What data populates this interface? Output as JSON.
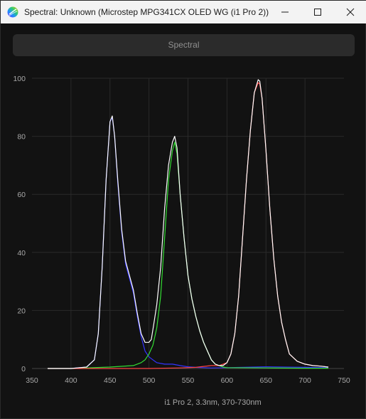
{
  "window": {
    "title": "Spectral: Unknown (Microstep MPG341CX OLED WG (i1 Pro 2))",
    "controls": [
      "minimize-icon",
      "maximize-icon",
      "close-icon"
    ]
  },
  "toolbar": {
    "spectral_label": "Spectral"
  },
  "chart_data": {
    "type": "line",
    "xlabel": "i1 Pro 2, 3.3nm, 370-730nm",
    "ylabel": "",
    "xlim": [
      350,
      750
    ],
    "ylim": [
      0,
      100
    ],
    "x_ticks": [
      350,
      400,
      450,
      500,
      550,
      600,
      650,
      700,
      750
    ],
    "y_ticks": [
      0,
      20,
      40,
      60,
      80,
      100
    ],
    "grid": true,
    "series": [
      {
        "color": "#ffffff",
        "x": [
          370,
          400,
          420,
          430,
          435,
          440,
          445,
          450,
          453,
          456,
          460,
          465,
          470,
          475,
          480,
          485,
          490,
          495,
          500,
          503,
          506,
          510,
          515,
          520,
          525,
          530,
          533,
          536,
          540,
          545,
          550,
          555,
          560,
          565,
          570,
          575,
          580,
          585,
          590,
          595,
          600,
          605,
          610,
          615,
          620,
          625,
          630,
          635,
          640,
          642,
          645,
          650,
          655,
          660,
          665,
          670,
          675,
          680,
          690,
          700,
          710,
          720,
          730
        ],
        "y": [
          0,
          0,
          0.5,
          3,
          12,
          35,
          65,
          85,
          87,
          80,
          65,
          48,
          37,
          32,
          27,
          19,
          12,
          9,
          9,
          10,
          15,
          22,
          35,
          55,
          70,
          78,
          80,
          76,
          60,
          45,
          32,
          24,
          18,
          13,
          9,
          6,
          3,
          1.5,
          1,
          1,
          2,
          5,
          12,
          25,
          45,
          65,
          82,
          95,
          99.5,
          99,
          93,
          75,
          55,
          38,
          25,
          16,
          10,
          5,
          2.5,
          1.5,
          1,
          0.8,
          0.5
        ]
      },
      {
        "color": "#3333ff",
        "x": [
          370,
          400,
          420,
          430,
          435,
          440,
          445,
          450,
          453,
          456,
          460,
          465,
          470,
          475,
          480,
          485,
          490,
          495,
          500,
          505,
          510,
          520,
          530,
          540,
          550,
          560,
          570,
          580,
          600,
          650,
          700,
          730
        ],
        "y": [
          0,
          0,
          0.5,
          3,
          12,
          35,
          65,
          85,
          86.5,
          80,
          64,
          47,
          36,
          31,
          26,
          18,
          11,
          6,
          4,
          3,
          2,
          1.5,
          1.5,
          1,
          0.6,
          0.4,
          0.3,
          0.2,
          0.3,
          0.6,
          0.4,
          0.3
        ]
      },
      {
        "color": "#33dd33",
        "x": [
          370,
          400,
          450,
          480,
          490,
          495,
          500,
          505,
          510,
          515,
          520,
          525,
          530,
          533,
          536,
          540,
          545,
          550,
          555,
          560,
          565,
          570,
          575,
          580,
          585,
          590,
          595,
          600,
          650,
          700,
          730
        ],
        "y": [
          0,
          0,
          0.5,
          1,
          2,
          3,
          5,
          8,
          14,
          25,
          45,
          65,
          75,
          78,
          74,
          60,
          45,
          32,
          24,
          18,
          13,
          9,
          6,
          3,
          1.5,
          1,
          0.5,
          0.3,
          0.2,
          0.1,
          0.1
        ],
        "name": ""
      },
      {
        "color": "#ff4444",
        "x": [
          370,
          450,
          500,
          540,
          560,
          580,
          590,
          600,
          605,
          610,
          615,
          620,
          625,
          630,
          635,
          640,
          642,
          645,
          650,
          655,
          660,
          665,
          670,
          675,
          680,
          690,
          700,
          710,
          720,
          730
        ],
        "y": [
          0,
          0,
          0,
          0.2,
          0.4,
          1,
          1,
          2,
          5,
          12,
          25,
          45,
          65,
          82,
          95,
          98.5,
          98,
          93,
          75,
          55,
          38,
          25,
          16,
          10,
          5,
          2.5,
          1.5,
          1,
          0.8,
          0.5
        ]
      }
    ]
  }
}
